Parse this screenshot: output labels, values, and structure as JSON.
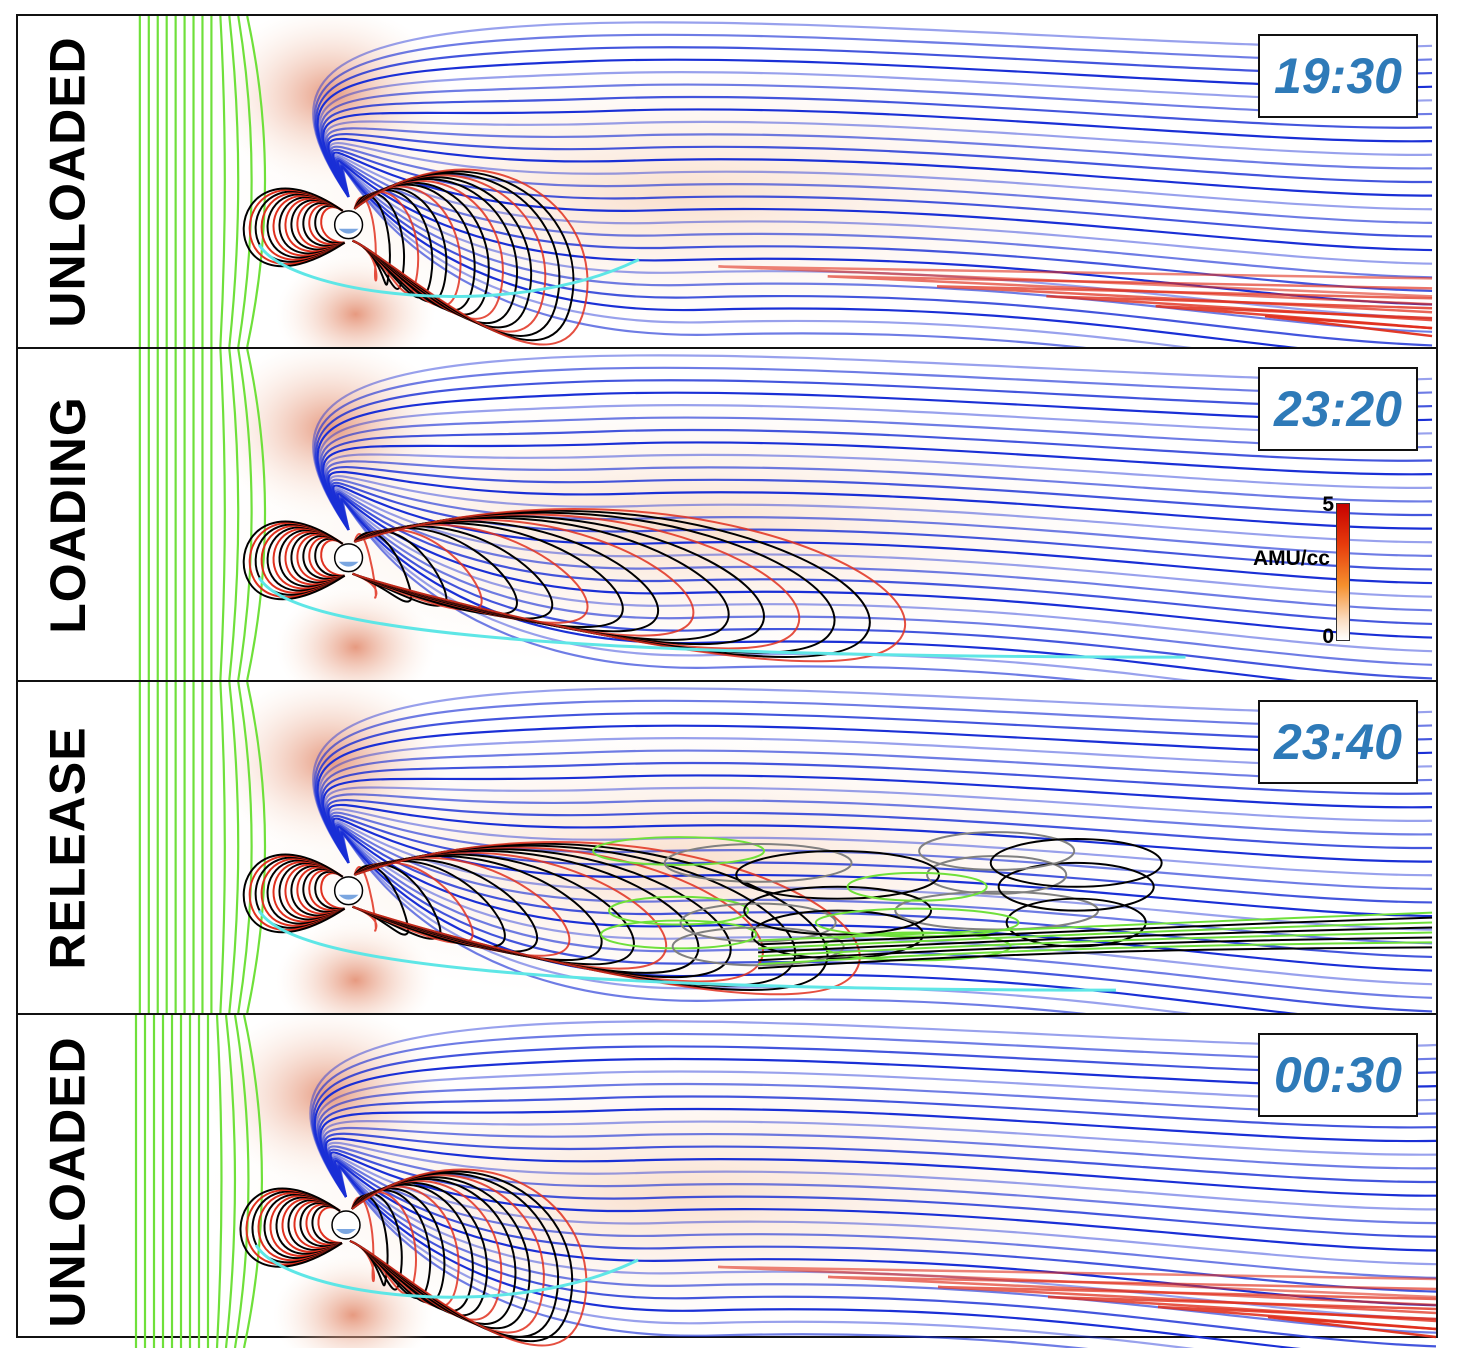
{
  "panels": [
    {
      "phase": "UNLOADED",
      "time": "19:30",
      "variant": "unloaded"
    },
    {
      "phase": "LOADING",
      "time": "23:20",
      "variant": "loading"
    },
    {
      "phase": "RELEASE",
      "time": "23:40",
      "variant": "release"
    },
    {
      "phase": "UNLOADED",
      "time": "00:30",
      "variant": "unloaded"
    }
  ],
  "colorbar": {
    "max_label": "5",
    "min_label": "0",
    "unit": "AMU/cc",
    "colors": [
      "#c60000",
      "#f6902e",
      "#ffffff"
    ]
  },
  "colors": {
    "open_field": "#1a2fd6",
    "closed_field": "#000000",
    "dayside_field": "#e0301e",
    "tail_field": "#e0301e",
    "imf_field": "#6fe03a",
    "boundary": "#5ee6e6",
    "plasmoid_field": "#808080",
    "time_text": "#2e7ab8"
  }
}
